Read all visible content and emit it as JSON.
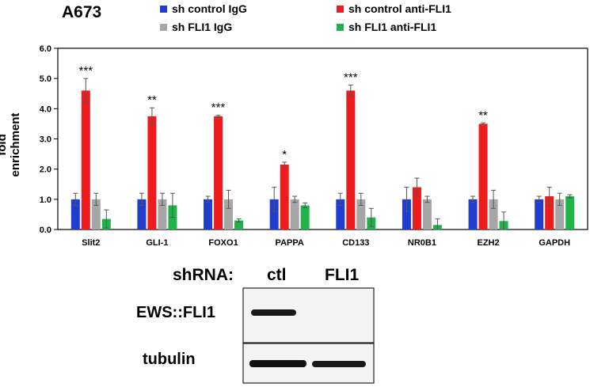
{
  "panel_label": "A673",
  "chart_data": {
    "type": "bar",
    "ylabel": "fold enrichment",
    "ylim": [
      0,
      6
    ],
    "yticks": [
      "0.0",
      "1.0",
      "2.0",
      "3.0",
      "4.0",
      "5.0",
      "6.0"
    ],
    "grid": false,
    "legend_position": "top",
    "categories": [
      "Slit2",
      "GLI-1",
      "FOXO1",
      "PAPPA",
      "CD133",
      "NR0B1",
      "EZH2",
      "GAPDH"
    ],
    "series": [
      {
        "name": "sh control IgG",
        "color": "#1f3ed0",
        "values": [
          1.0,
          1.0,
          1.0,
          1.0,
          1.0,
          1.0,
          1.0,
          1.0
        ],
        "errors": [
          0.2,
          0.2,
          0.1,
          0.4,
          0.2,
          0.4,
          0.1,
          0.1
        ]
      },
      {
        "name": "sh control anti-FLI1",
        "color": "#ee1c1c",
        "values": [
          4.6,
          3.75,
          3.75,
          2.15,
          4.6,
          1.4,
          3.5,
          1.1
        ],
        "errors": [
          0.4,
          0.28,
          0.03,
          0.08,
          0.18,
          0.3,
          0.03,
          0.3
        ]
      },
      {
        "name": "sh FLI1 IgG",
        "color": "#a6a6a6",
        "values": [
          1.0,
          1.0,
          1.0,
          1.0,
          1.0,
          1.0,
          1.0,
          1.0
        ],
        "errors": [
          0.2,
          0.2,
          0.3,
          0.1,
          0.2,
          0.1,
          0.3,
          0.2
        ]
      },
      {
        "name": "sh FLI1 anti-FLI1",
        "color": "#1fb34a",
        "values": [
          0.35,
          0.8,
          0.3,
          0.8,
          0.4,
          0.15,
          0.28,
          1.1
        ],
        "errors": [
          0.3,
          0.4,
          0.05,
          0.08,
          0.3,
          0.2,
          0.3,
          0.05
        ]
      }
    ],
    "annotations": [
      "***",
      "**",
      "***",
      "*",
      "***",
      "",
      "**",
      ""
    ]
  },
  "blot": {
    "header": "shRNA:",
    "columns": [
      "ctl",
      "FLI1"
    ],
    "rows": [
      "EWS::FLI1",
      "tubulin"
    ]
  }
}
